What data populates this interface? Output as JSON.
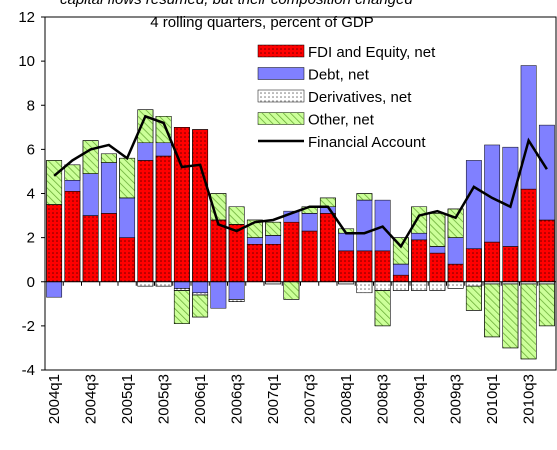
{
  "chart_data": {
    "type": "bar",
    "stacked": true,
    "title": "capital flows resumed, but their composition changed",
    "subtitle": "4 rolling quarters, percent of GDP",
    "categories": [
      "2004q1",
      null,
      "2004q3",
      null,
      "2005q1",
      null,
      "2005q3",
      null,
      "2006q1",
      null,
      "2006q3",
      null,
      "2007q1",
      null,
      "2007q3",
      null,
      "2008q1",
      null,
      "2008q3",
      null,
      "2009q1",
      null,
      "2009q3",
      null,
      "2010q1",
      null,
      "2010q3",
      null
    ],
    "series": [
      {
        "name": "FDI and Equity, net",
        "color": "#ff0000",
        "pattern": "dots",
        "values": [
          3.5,
          4.1,
          3.0,
          3.1,
          2.0,
          5.5,
          5.7,
          7.0,
          6.9,
          2.8,
          2.6,
          1.7,
          1.7,
          2.7,
          2.3,
          3.1,
          1.4,
          1.4,
          1.4,
          0.3,
          1.9,
          1.3,
          0.8,
          1.5,
          1.8,
          1.6,
          4.2,
          2.8
        ]
      },
      {
        "name": "Debt, net",
        "color": "#8080ff",
        "pattern": "none",
        "values": [
          -0.7,
          0.5,
          1.9,
          2.3,
          1.8,
          0.8,
          0.6,
          -0.3,
          -0.5,
          -1.2,
          -0.8,
          0.3,
          0.4,
          0.5,
          0.8,
          0.3,
          0.8,
          2.3,
          2.3,
          0.5,
          0.3,
          0.3,
          1.2,
          4.0,
          4.4,
          4.5,
          5.6,
          4.3
        ]
      },
      {
        "name": "Derivatives, net",
        "color": "#ffffff",
        "pattern": "dots",
        "values": [
          0,
          0,
          0,
          0,
          0,
          -0.2,
          -0.2,
          -0.1,
          -0.1,
          0,
          -0.1,
          0,
          -0.1,
          0,
          0,
          0,
          -0.1,
          -0.5,
          -0.4,
          -0.4,
          -0.4,
          -0.4,
          -0.3,
          -0.2,
          -0.1,
          -0.1,
          -0.1,
          -0.1
        ]
      },
      {
        "name": "Other, net",
        "color": "#ccff99",
        "pattern": "hatch",
        "values": [
          2.0,
          0.7,
          1.5,
          0.4,
          1.8,
          1.5,
          1.2,
          -1.5,
          -1.0,
          1.2,
          0.8,
          0.8,
          0.6,
          -0.8,
          0.3,
          0.4,
          0.2,
          0.3,
          -1.6,
          1.2,
          1.2,
          1.5,
          1.3,
          -1.1,
          -2.4,
          -2.9,
          -3.4,
          -1.9
        ]
      }
    ],
    "line": {
      "name": "Financial Account",
      "color": "#000000",
      "values": [
        4.8,
        5.5,
        6.0,
        6.2,
        5.6,
        7.5,
        7.2,
        5.2,
        5.3,
        2.6,
        2.3,
        2.7,
        2.8,
        3.1,
        3.4,
        3.4,
        2.2,
        2.2,
        2.5,
        1.6,
        3.0,
        3.2,
        2.9,
        4.3,
        3.8,
        3.4,
        6.4,
        5.1
      ]
    },
    "ylim": [
      -4,
      12
    ],
    "yticks": [
      -4,
      -2,
      0,
      2,
      4,
      6,
      8,
      10,
      12
    ]
  }
}
